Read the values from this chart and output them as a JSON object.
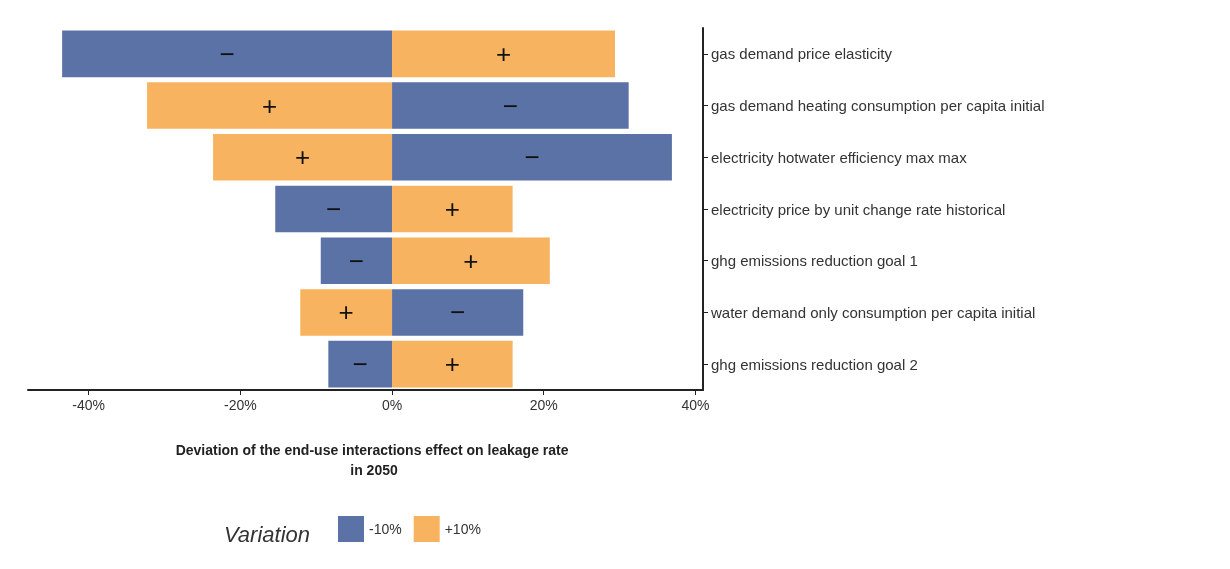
{
  "chart_data": {
    "type": "bar",
    "orientation": "horizontal",
    "xlabel": "Deviation of the end-use interactions effect on leakage rate in 2050",
    "legend_title": "Variation",
    "legend": "bottom",
    "stacked": true,
    "categories": [
      "gas demand price elasticity",
      "gas demand heating consumption per capita initial",
      "electricity hotwater efficiency max max",
      "electricity price by unit change rate historical",
      "ghg emissions reduction goal 1",
      "water demand only consumption per capita initial",
      "ghg emissions reduction goal 2"
    ],
    "series": [
      {
        "name": "-10%",
        "color": "#5a72a6",
        "values": [
          -43.5,
          31.2,
          36.9,
          -15.4,
          -9.4,
          17.3,
          -8.4
        ],
        "value_labels": [
          "−",
          "−",
          "−",
          "−",
          "−",
          "−",
          "−"
        ]
      },
      {
        "name": "+10%",
        "color": "#f7b35f",
        "values": [
          29.4,
          -32.3,
          -23.6,
          15.9,
          20.8,
          -12.1,
          15.9
        ],
        "value_labels": [
          "+",
          "+",
          "+",
          "+",
          "+",
          "+",
          "+"
        ]
      }
    ],
    "xlim": [
      -48,
      41
    ],
    "xticks": [
      {
        "value": -40,
        "label": "-40%"
      },
      {
        "value": -20,
        "label": "-20%"
      },
      {
        "value": 0,
        "label": "0%"
      },
      {
        "value": 20,
        "label": "20%"
      },
      {
        "value": 40,
        "label": "40%"
      }
    ]
  }
}
